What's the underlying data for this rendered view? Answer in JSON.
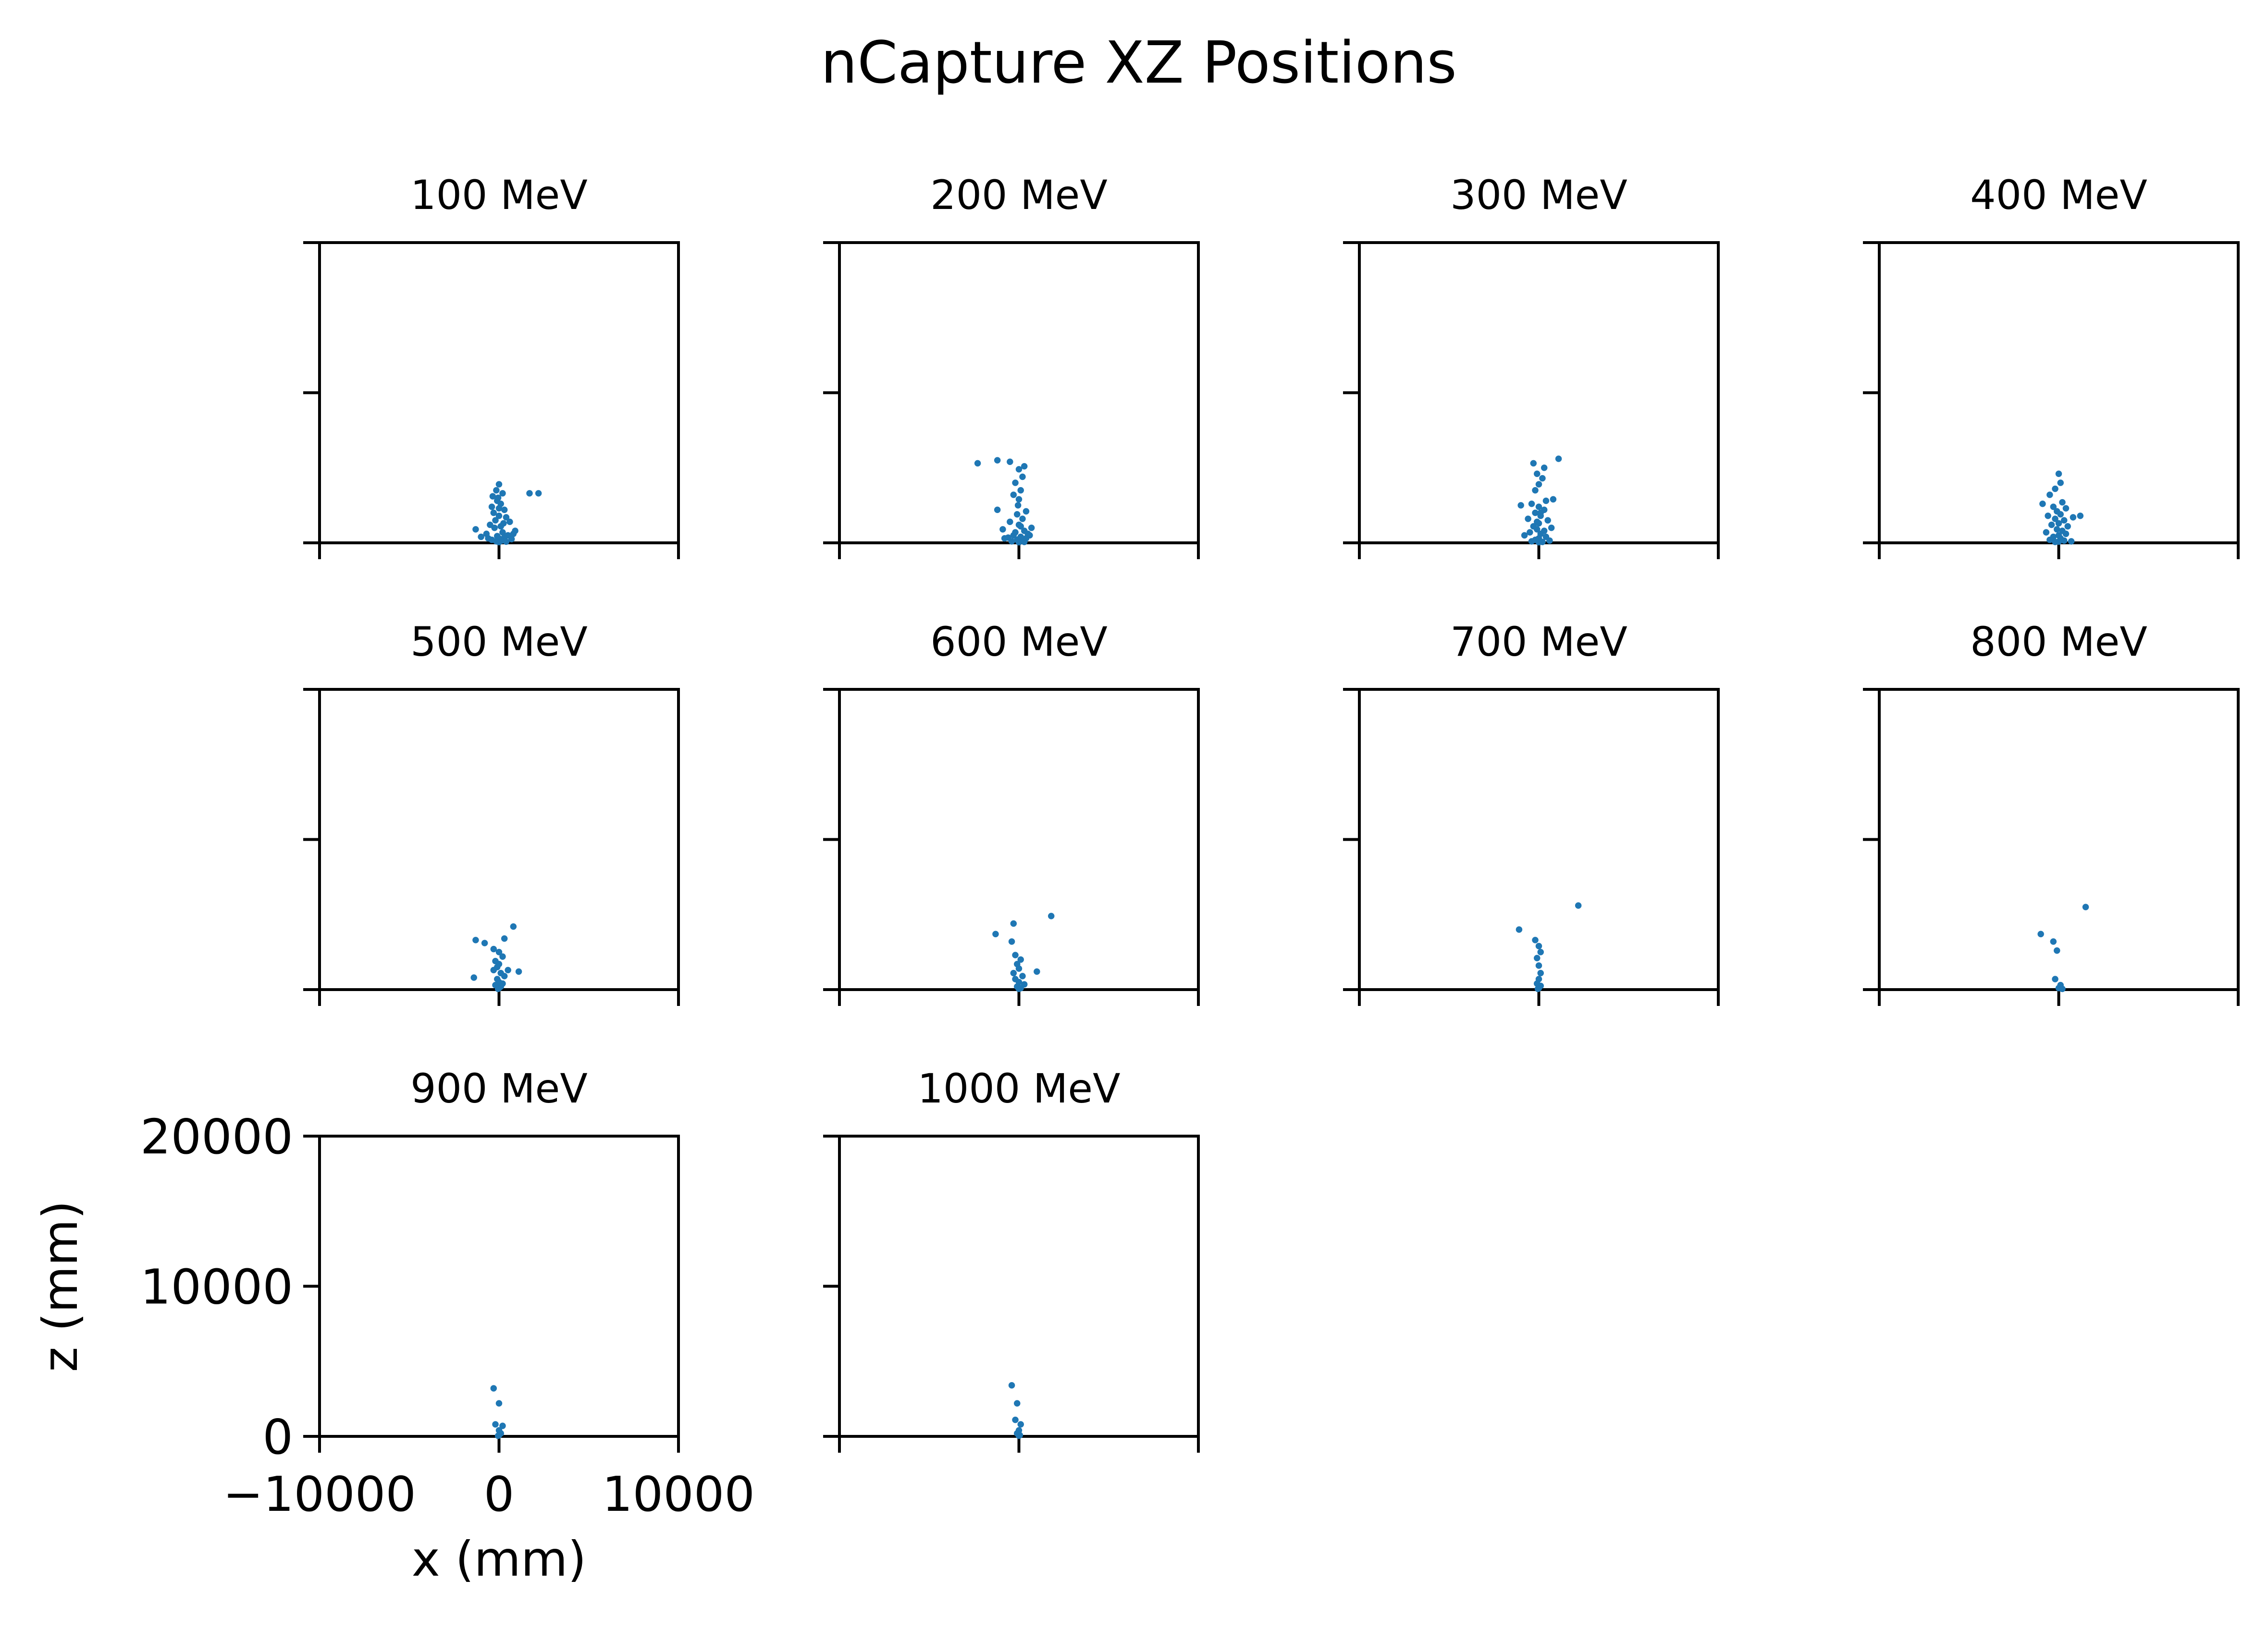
{
  "chart_data": {
    "type": "scatter",
    "title": "nCapture XZ Positions",
    "xlabel": "x (mm)",
    "ylabel": "z (mm)",
    "xlim": [
      -10000,
      10000
    ],
    "ylim": [
      0,
      20000
    ],
    "xticks": [
      -10000,
      0,
      10000
    ],
    "xtick_labels": [
      "−10000",
      "0",
      "10000"
    ],
    "yticks": [
      0,
      10000,
      20000
    ],
    "ytick_labels": [
      "0",
      "10000",
      "20000"
    ],
    "marker_color": "#1f77b4",
    "grid": false,
    "shared_axes": true,
    "panels": [
      {
        "title": "100 MeV",
        "points": [
          [
            0,
            3900
          ],
          [
            -150,
            3500
          ],
          [
            200,
            3300
          ],
          [
            -350,
            3100
          ],
          [
            1700,
            3300
          ],
          [
            2200,
            3300
          ],
          [
            -100,
            2800
          ],
          [
            100,
            2600
          ],
          [
            -400,
            2400
          ],
          [
            300,
            2200
          ],
          [
            -300,
            2000
          ],
          [
            0,
            1800
          ],
          [
            400,
            1700
          ],
          [
            -200,
            1500
          ],
          [
            600,
            1400
          ],
          [
            -500,
            1200
          ],
          [
            100,
            1100
          ],
          [
            -1300,
            900
          ],
          [
            900,
            800
          ],
          [
            200,
            700
          ],
          [
            -700,
            600
          ],
          [
            500,
            500
          ],
          [
            -100,
            450
          ],
          [
            -1000,
            400
          ],
          [
            300,
            350
          ],
          [
            0,
            300
          ],
          [
            700,
            250
          ],
          [
            -400,
            200
          ],
          [
            150,
            150
          ],
          [
            -150,
            100
          ],
          [
            400,
            80
          ],
          [
            0,
            50
          ],
          [
            -600,
            300
          ],
          [
            800,
            600
          ],
          [
            -250,
            1000
          ],
          [
            250,
            1300
          ],
          [
            0,
            2300
          ],
          [
            -50,
            3000
          ]
        ]
      },
      {
        "title": "200 MeV",
        "points": [
          [
            -1200,
            5500
          ],
          [
            -2300,
            5300
          ],
          [
            -500,
            5400
          ],
          [
            300,
            5100
          ],
          [
            0,
            4900
          ],
          [
            200,
            4400
          ],
          [
            -200,
            4000
          ],
          [
            100,
            3500
          ],
          [
            -300,
            3200
          ],
          [
            0,
            2900
          ],
          [
            -1200,
            2200
          ],
          [
            400,
            2100
          ],
          [
            -100,
            1900
          ],
          [
            200,
            1600
          ],
          [
            -500,
            1400
          ],
          [
            0,
            1200
          ],
          [
            700,
            1000
          ],
          [
            -900,
            900
          ],
          [
            300,
            800
          ],
          [
            -200,
            700
          ],
          [
            500,
            600
          ],
          [
            -300,
            500
          ],
          [
            100,
            400
          ],
          [
            -600,
            350
          ],
          [
            400,
            300
          ],
          [
            0,
            250
          ],
          [
            -100,
            200
          ],
          [
            200,
            150
          ],
          [
            -400,
            100
          ],
          [
            300,
            60
          ],
          [
            0,
            40
          ],
          [
            600,
            500
          ],
          [
            -800,
            300
          ],
          [
            100,
            1100
          ],
          [
            -50,
            2500
          ]
        ]
      },
      {
        "title": "300 MeV",
        "points": [
          [
            1100,
            5600
          ],
          [
            -300,
            5300
          ],
          [
            300,
            5000
          ],
          [
            -100,
            4600
          ],
          [
            200,
            4300
          ],
          [
            0,
            3900
          ],
          [
            -200,
            3500
          ],
          [
            800,
            2900
          ],
          [
            400,
            2800
          ],
          [
            -400,
            2600
          ],
          [
            -1000,
            2500
          ],
          [
            0,
            2400
          ],
          [
            300,
            2200
          ],
          [
            -200,
            2000
          ],
          [
            100,
            1800
          ],
          [
            -600,
            1600
          ],
          [
            500,
            1500
          ],
          [
            0,
            1300
          ],
          [
            -300,
            1100
          ],
          [
            700,
            1000
          ],
          [
            -100,
            900
          ],
          [
            300,
            800
          ],
          [
            -500,
            700
          ],
          [
            100,
            600
          ],
          [
            -800,
            500
          ],
          [
            400,
            400
          ],
          [
            0,
            300
          ],
          [
            -200,
            200
          ],
          [
            600,
            150
          ],
          [
            -400,
            100
          ],
          [
            200,
            60
          ],
          [
            0,
            40
          ],
          [
            -100,
            1400
          ],
          [
            100,
            2000
          ]
        ]
      },
      {
        "title": "400 MeV",
        "points": [
          [
            0,
            4600
          ],
          [
            100,
            4000
          ],
          [
            -200,
            3600
          ],
          [
            -500,
            3200
          ],
          [
            -900,
            2600
          ],
          [
            200,
            2700
          ],
          [
            -300,
            2400
          ],
          [
            400,
            2300
          ],
          [
            -100,
            2100
          ],
          [
            100,
            1900
          ],
          [
            -600,
            1800
          ],
          [
            800,
            1700
          ],
          [
            1200,
            1800
          ],
          [
            -200,
            1600
          ],
          [
            300,
            1500
          ],
          [
            0,
            1300
          ],
          [
            -400,
            1200
          ],
          [
            500,
            1100
          ],
          [
            -100,
            900
          ],
          [
            200,
            800
          ],
          [
            -700,
            700
          ],
          [
            400,
            600
          ],
          [
            0,
            500
          ],
          [
            -300,
            400
          ],
          [
            100,
            300
          ],
          [
            -500,
            200
          ],
          [
            300,
            150
          ],
          [
            0,
            80
          ],
          [
            -200,
            60
          ],
          [
            700,
            100
          ]
        ]
      },
      {
        "title": "500 MeV",
        "points": [
          [
            800,
            4200
          ],
          [
            -1300,
            3300
          ],
          [
            300,
            3400
          ],
          [
            -800,
            3100
          ],
          [
            -300,
            2700
          ],
          [
            0,
            2500
          ],
          [
            200,
            2200
          ],
          [
            -200,
            1900
          ],
          [
            0,
            1700
          ],
          [
            -100,
            1500
          ],
          [
            500,
            1300
          ],
          [
            1100,
            1200
          ],
          [
            -300,
            1300
          ],
          [
            100,
            1100
          ],
          [
            -1400,
            800
          ],
          [
            300,
            900
          ],
          [
            -100,
            700
          ],
          [
            0,
            500
          ],
          [
            200,
            400
          ],
          [
            -200,
            300
          ],
          [
            100,
            200
          ],
          [
            0,
            100
          ],
          [
            -50,
            50
          ]
        ]
      },
      {
        "title": "600 MeV",
        "points": [
          [
            1800,
            4900
          ],
          [
            -300,
            4400
          ],
          [
            -1300,
            3700
          ],
          [
            -400,
            3200
          ],
          [
            -200,
            2300
          ],
          [
            100,
            2000
          ],
          [
            -100,
            1700
          ],
          [
            1000,
            1200
          ],
          [
            0,
            1400
          ],
          [
            -300,
            1100
          ],
          [
            200,
            900
          ],
          [
            -200,
            700
          ],
          [
            0,
            500
          ],
          [
            300,
            350
          ],
          [
            -100,
            200
          ],
          [
            100,
            100
          ],
          [
            0,
            50
          ]
        ]
      },
      {
        "title": "700 MeV",
        "points": [
          [
            2200,
            5600
          ],
          [
            -1100,
            4000
          ],
          [
            -200,
            3300
          ],
          [
            0,
            2900
          ],
          [
            100,
            2500
          ],
          [
            -100,
            2100
          ],
          [
            0,
            1600
          ],
          [
            100,
            1100
          ],
          [
            0,
            700
          ],
          [
            -100,
            400
          ],
          [
            100,
            250
          ],
          [
            0,
            100
          ],
          [
            -50,
            50
          ]
        ]
      },
      {
        "title": "800 MeV",
        "points": [
          [
            1500,
            5500
          ],
          [
            -1000,
            3700
          ],
          [
            -300,
            3200
          ],
          [
            -100,
            2600
          ],
          [
            -200,
            700
          ],
          [
            100,
            300
          ],
          [
            0,
            100
          ],
          [
            200,
            50
          ]
        ]
      },
      {
        "title": "900 MeV",
        "points": [
          [
            -300,
            3200
          ],
          [
            0,
            2200
          ],
          [
            -200,
            800
          ],
          [
            200,
            700
          ],
          [
            0,
            400
          ],
          [
            100,
            200
          ],
          [
            0,
            80
          ],
          [
            -50,
            40
          ]
        ]
      },
      {
        "title": "1000 MeV",
        "points": [
          [
            -400,
            3400
          ],
          [
            -100,
            2200
          ],
          [
            -200,
            1100
          ],
          [
            100,
            800
          ],
          [
            0,
            400
          ],
          [
            -100,
            200
          ],
          [
            50,
            80
          ],
          [
            0,
            40
          ]
        ]
      }
    ]
  }
}
